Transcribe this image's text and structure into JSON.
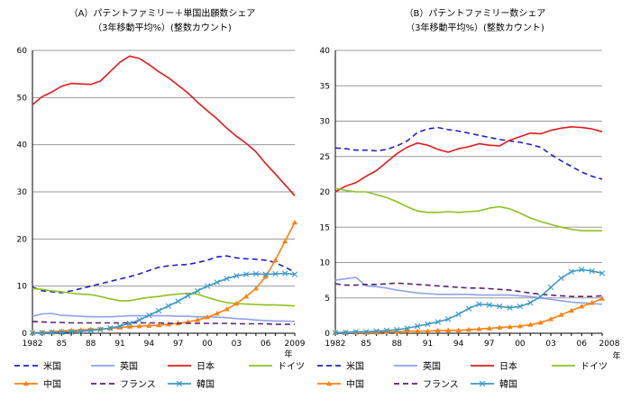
{
  "chart_data": [
    {
      "type": "line",
      "title": "（A）パテントファミリー＋単国出願数シェア",
      "subtitle": "（3年移動平均%）(整数カウント)",
      "ylim": [
        0,
        60
      ],
      "yticks": [
        "0",
        "10",
        "20",
        "30",
        "40",
        "50",
        "60"
      ],
      "x": [
        1982,
        1983,
        1984,
        1985,
        1986,
        1987,
        1988,
        1989,
        1990,
        1991,
        1992,
        1993,
        1994,
        1995,
        1996,
        1997,
        1998,
        1999,
        2000,
        2001,
        2002,
        2003,
        2004,
        2005,
        2006,
        2007,
        2008,
        2009
      ],
      "xtick_labels": [
        {
          "year": 1982,
          "label": "1982"
        },
        {
          "year": 1985,
          "label": "85"
        },
        {
          "year": 1988,
          "label": "88"
        },
        {
          "year": 1991,
          "label": "91"
        },
        {
          "year": 1994,
          "label": "94"
        },
        {
          "year": 1997,
          "label": "97"
        },
        {
          "year": 2000,
          "label": "00"
        },
        {
          "year": 2003,
          "label": "03"
        },
        {
          "year": 2006,
          "label": "06"
        },
        {
          "year": 2009,
          "label": "2009"
        }
      ],
      "year_unit": "年",
      "series": [
        {
          "name": "米国",
          "color": "#1f1fd2",
          "style": "dashed",
          "marker": "none",
          "values": [
            9.8,
            9.0,
            8.8,
            8.6,
            9.0,
            9.5,
            10.0,
            10.5,
            11.0,
            11.5,
            12.0,
            12.6,
            13.3,
            14.0,
            14.3,
            14.5,
            14.6,
            15.0,
            15.5,
            16.2,
            16.4,
            16.0,
            15.8,
            15.7,
            15.5,
            15.0,
            14.0,
            13.0
          ]
        },
        {
          "name": "英国",
          "color": "#8ea2e8",
          "style": "solid",
          "marker": "none",
          "values": [
            3.6,
            4.1,
            4.2,
            3.8,
            3.7,
            3.6,
            3.5,
            3.5,
            3.5,
            3.6,
            3.7,
            3.7,
            3.7,
            3.7,
            3.7,
            3.6,
            3.6,
            3.5,
            3.5,
            3.4,
            3.3,
            3.1,
            3.0,
            2.8,
            2.7,
            2.6,
            2.6,
            2.5
          ]
        },
        {
          "name": "日本",
          "color": "#e41a1c",
          "style": "solid",
          "marker": "none",
          "values": [
            48.5,
            50.2,
            51.2,
            52.4,
            53.0,
            52.9,
            52.8,
            53.5,
            55.5,
            57.5,
            58.8,
            58.3,
            57.0,
            55.5,
            54.2,
            52.6,
            51.0,
            49.0,
            47.2,
            45.5,
            43.5,
            41.8,
            40.3,
            38.5,
            36.0,
            33.8,
            31.5,
            29.2
          ]
        },
        {
          "name": "ドイツ",
          "color": "#8dc21f",
          "style": "solid",
          "marker": "none",
          "values": [
            9.5,
            9.3,
            9.0,
            8.8,
            8.5,
            8.3,
            8.2,
            7.8,
            7.3,
            6.9,
            6.9,
            7.3,
            7.6,
            7.8,
            8.1,
            8.3,
            8.5,
            8.3,
            7.6,
            7.0,
            6.5,
            6.3,
            6.2,
            6.1,
            6.0,
            6.0,
            5.9,
            5.8
          ]
        },
        {
          "name": "中国",
          "color": "#ff7f0e",
          "style": "solid",
          "marker": "triangle",
          "values": [
            0.1,
            0.2,
            0.3,
            0.5,
            0.6,
            0.7,
            0.8,
            0.9,
            1.0,
            1.2,
            1.4,
            1.5,
            1.6,
            1.7,
            1.9,
            2.1,
            2.4,
            2.8,
            3.4,
            4.2,
            5.1,
            6.3,
            7.8,
            9.5,
            12.0,
            15.5,
            19.5,
            23.5
          ]
        },
        {
          "name": "フランス",
          "color": "#5b1f7a",
          "style": "dashed",
          "marker": "none",
          "values": [
            2.5,
            2.4,
            2.3,
            2.3,
            2.2,
            2.2,
            2.2,
            2.2,
            2.2,
            2.2,
            2.2,
            2.2,
            2.2,
            2.2,
            2.1,
            2.1,
            2.1,
            2.1,
            2.1,
            2.1,
            2.1,
            2.0,
            2.0,
            2.0,
            2.0,
            1.9,
            1.9,
            1.9
          ]
        },
        {
          "name": "韓国",
          "color": "#3a98c8",
          "style": "solid",
          "marker": "x",
          "values": [
            0.1,
            0.1,
            0.2,
            0.2,
            0.3,
            0.4,
            0.6,
            0.8,
            1.1,
            1.5,
            2.1,
            2.8,
            3.8,
            4.8,
            5.8,
            6.8,
            8.0,
            9.0,
            10.0,
            10.8,
            11.6,
            12.2,
            12.5,
            12.6,
            12.5,
            12.6,
            12.7,
            12.5
          ]
        }
      ]
    },
    {
      "type": "line",
      "title": "（B）パテントファミリー数シェア",
      "subtitle": "（3年移動平均%）(整数カウント)",
      "ylim": [
        0,
        40
      ],
      "yticks": [
        "0",
        "5",
        "10",
        "15",
        "20",
        "25",
        "30",
        "35",
        "40"
      ],
      "x": [
        1982,
        1983,
        1984,
        1985,
        1986,
        1987,
        1988,
        1989,
        1990,
        1991,
        1992,
        1993,
        1994,
        1995,
        1996,
        1997,
        1998,
        1999,
        2000,
        2001,
        2002,
        2003,
        2004,
        2005,
        2006,
        2007,
        2008
      ],
      "xtick_labels": [
        {
          "year": 1982,
          "label": "1982"
        },
        {
          "year": 1985,
          "label": "85"
        },
        {
          "year": 1988,
          "label": "88"
        },
        {
          "year": 1991,
          "label": "91"
        },
        {
          "year": 1994,
          "label": "94"
        },
        {
          "year": 1997,
          "label": "97"
        },
        {
          "year": 2000,
          "label": "00"
        },
        {
          "year": 2003,
          "label": "03"
        },
        {
          "year": 2006,
          "label": "06"
        }
      ],
      "end_label": "2008",
      "year_unit": "年",
      "series": [
        {
          "name": "米国",
          "color": "#1f1fd2",
          "style": "dashed",
          "marker": "none",
          "values": [
            26.2,
            26.1,
            25.9,
            25.9,
            25.8,
            26.0,
            26.5,
            27.2,
            28.4,
            28.9,
            29.1,
            28.8,
            28.6,
            28.3,
            28.0,
            27.7,
            27.4,
            27.2,
            27.0,
            26.7,
            26.3,
            25.3,
            24.4,
            23.6,
            22.8,
            22.2,
            21.8
          ]
        },
        {
          "name": "英国",
          "color": "#8ea2e8",
          "style": "solid",
          "marker": "none",
          "values": [
            7.5,
            7.7,
            7.9,
            6.7,
            6.6,
            6.4,
            6.1,
            5.9,
            5.7,
            5.6,
            5.5,
            5.5,
            5.5,
            5.5,
            5.4,
            5.4,
            5.4,
            5.4,
            5.3,
            5.2,
            5.0,
            4.8,
            4.6,
            4.4,
            4.3,
            4.2,
            4.1
          ]
        },
        {
          "name": "日本",
          "color": "#e41a1c",
          "style": "solid",
          "marker": "none",
          "values": [
            20.0,
            20.8,
            21.3,
            22.2,
            23.0,
            24.2,
            25.4,
            26.3,
            26.9,
            26.6,
            26.0,
            25.6,
            26.1,
            26.4,
            26.8,
            26.6,
            26.5,
            27.3,
            27.8,
            28.3,
            28.2,
            28.7,
            29.0,
            29.2,
            29.1,
            28.9,
            28.5
          ]
        },
        {
          "name": "ドイツ",
          "color": "#8dc21f",
          "style": "solid",
          "marker": "none",
          "values": [
            20.5,
            20.2,
            20.0,
            20.0,
            19.6,
            19.2,
            18.6,
            17.9,
            17.3,
            17.1,
            17.1,
            17.2,
            17.1,
            17.2,
            17.3,
            17.7,
            17.9,
            17.6,
            17.0,
            16.3,
            15.8,
            15.4,
            15.0,
            14.7,
            14.5,
            14.5,
            14.5
          ]
        },
        {
          "name": "中国",
          "color": "#ff7f0e",
          "style": "solid",
          "marker": "triangle",
          "values": [
            0.1,
            0.1,
            0.1,
            0.1,
            0.1,
            0.2,
            0.2,
            0.3,
            0.3,
            0.3,
            0.4,
            0.4,
            0.4,
            0.5,
            0.6,
            0.7,
            0.8,
            0.9,
            1.0,
            1.2,
            1.5,
            2.0,
            2.6,
            3.2,
            3.8,
            4.3,
            4.9
          ]
        },
        {
          "name": "フランス",
          "color": "#5b1f7a",
          "style": "dashed",
          "marker": "none",
          "values": [
            7.0,
            6.8,
            6.8,
            6.9,
            6.9,
            7.0,
            7.1,
            7.0,
            6.9,
            6.8,
            6.7,
            6.6,
            6.5,
            6.4,
            6.4,
            6.3,
            6.2,
            6.1,
            5.9,
            5.7,
            5.5,
            5.4,
            5.3,
            5.2,
            5.2,
            5.2,
            5.3
          ]
        },
        {
          "name": "韓国",
          "color": "#3a98c8",
          "style": "solid",
          "marker": "x",
          "values": [
            0.1,
            0.1,
            0.2,
            0.2,
            0.3,
            0.4,
            0.5,
            0.7,
            1.0,
            1.3,
            1.6,
            2.0,
            2.7,
            3.5,
            4.1,
            4.0,
            3.8,
            3.6,
            3.8,
            4.3,
            5.2,
            6.5,
            7.8,
            8.7,
            9.0,
            8.8,
            8.5
          ]
        }
      ]
    }
  ]
}
